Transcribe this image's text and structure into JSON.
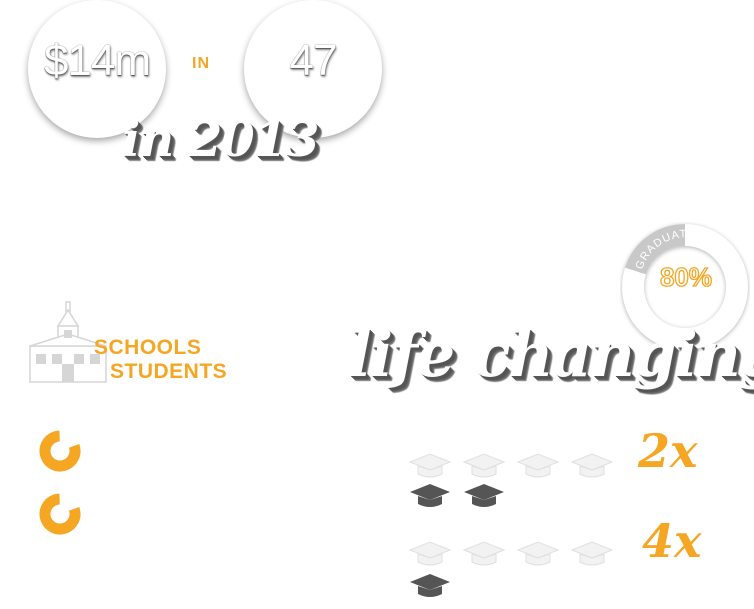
{
  "stats": {
    "amount": "$14m",
    "connector": "IN",
    "count": "47",
    "year_text": "in 2013"
  },
  "graduate": {
    "label": "GRADUATE",
    "percent": "80%",
    "fraction": 0.8
  },
  "schools": {
    "line1": "SCHOOLS",
    "line2": "STUDENTS"
  },
  "headline": "life changing",
  "rings": [
    {
      "name": "ring-1",
      "fill_fraction": 0.8
    },
    {
      "name": "ring-2",
      "fill_fraction": 0.8
    }
  ],
  "comparisons": [
    {
      "multiplier": "2x",
      "faded_caps": 4,
      "solid_caps": 2
    },
    {
      "multiplier": "4x",
      "faded_caps": 4,
      "solid_caps": 1
    }
  ],
  "colors": {
    "accent": "#f5a623",
    "cap_dark": "#555555",
    "graduate_grey": "#c8c8c8"
  },
  "icons": {
    "school": "school-building-icon",
    "cap": "graduation-cap-icon"
  }
}
